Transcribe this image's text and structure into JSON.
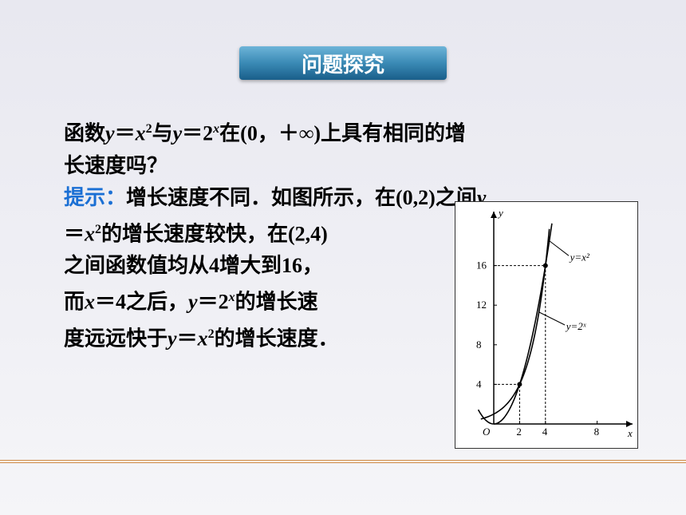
{
  "banner": {
    "title": "问题探究"
  },
  "lines": {
    "q1a": "函数",
    "q1b": "与",
    "q1c": "在(0，＋∞)上具有相同的增",
    "q2": "长速度吗？",
    "h_label": "提示：",
    "h1": "增长速度不同．如图所示，在(0,2)之间",
    "h2a": "＝",
    "h2b": "的增长速度较快，在(2,4)",
    "h3": "之间函数值均从4增大到16，",
    "h4a": "而",
    "h4b": "＝4之后，",
    "h4c": "＝2",
    "h4d": "的增长速",
    "h5a": "度远远快于",
    "h5b": "＝",
    "h5c": "的增长速度．",
    "y": "y",
    "x": "x",
    "two": "2",
    "xpow": "x"
  },
  "graph": {
    "y_axis_label": "y",
    "x_axis_label": "x",
    "origin": "O",
    "x_ticks": [
      2,
      4,
      8
    ],
    "y_ticks": [
      4,
      8,
      12,
      16
    ],
    "curve1_label": "y=x²",
    "curve2_label": "y=2ˣ",
    "colors": {
      "bg": "#ffffff",
      "axis": "#000000",
      "curve": "#000000",
      "text": "#000000"
    },
    "xlim": [
      0,
      10
    ],
    "ylim": [
      0,
      20
    ],
    "font_size": 13
  }
}
